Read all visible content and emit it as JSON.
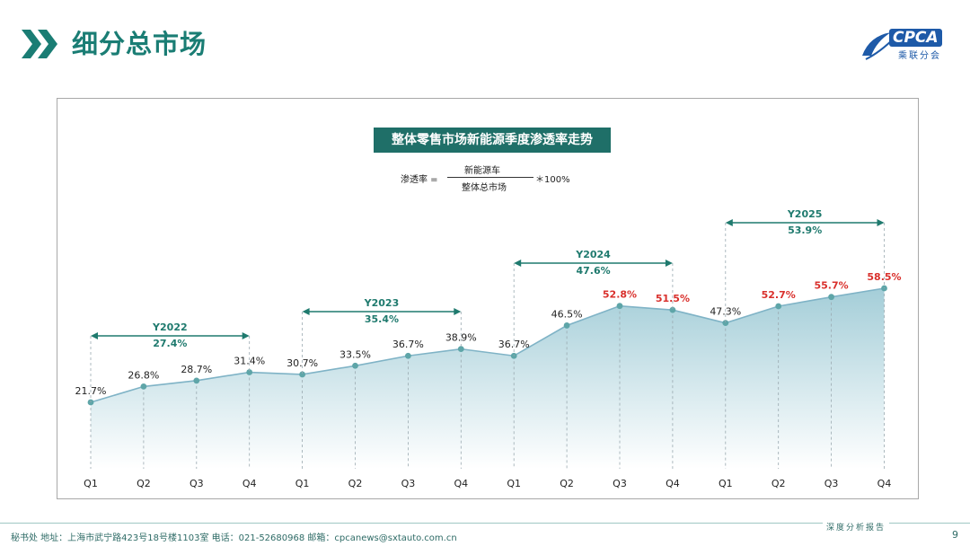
{
  "header": {
    "title": "细分总市场",
    "icon": "double-chevron-right-icon",
    "accent_color": "#1a7d74"
  },
  "logo": {
    "main": "CPCA",
    "sub": "乘联分会"
  },
  "chart_data": {
    "type": "area",
    "title": "整体零售市场新能源季度渗透率走势",
    "formula": {
      "lhs": "渗透率 =",
      "numerator": "新能源车",
      "denominator": "整体总市场",
      "rhs": "＊100%"
    },
    "categories": [
      "Q1",
      "Q2",
      "Q3",
      "Q4",
      "Q1",
      "Q2",
      "Q3",
      "Q4",
      "Q1",
      "Q2",
      "Q3",
      "Q4",
      "Q1",
      "Q2",
      "Q3",
      "Q4"
    ],
    "values": [
      21.7,
      26.8,
      28.7,
      31.4,
      30.7,
      33.5,
      36.7,
      38.9,
      36.7,
      46.5,
      52.8,
      51.5,
      47.3,
      52.7,
      55.7,
      58.5
    ],
    "value_labels": [
      "21.7%",
      "26.8%",
      "28.7%",
      "31.4%",
      "30.7%",
      "33.5%",
      "36.7%",
      "38.9%",
      "36.7%",
      "46.5%",
      "52.8%",
      "51.5%",
      "47.3%",
      "52.7%",
      "55.7%",
      "58.5%"
    ],
    "highlight": [
      false,
      false,
      false,
      false,
      false,
      false,
      false,
      false,
      false,
      false,
      true,
      true,
      false,
      true,
      true,
      true
    ],
    "highlight_color": "#d9302c",
    "line_color": "#7fb3c6",
    "point_color": "#5ea5a8",
    "annotation_color": "#1f7a6e",
    "year_groups": [
      {
        "label": "Y2022",
        "value": "27.4%",
        "start": 0,
        "end": 3
      },
      {
        "label": "Y2023",
        "value": "35.4%",
        "start": 4,
        "end": 7
      },
      {
        "label": "Y2024",
        "value": "47.6%",
        "start": 8,
        "end": 11
      },
      {
        "label": "Y2025",
        "value": "53.9%",
        "start": 12,
        "end": 15
      }
    ]
  },
  "footer": {
    "text": "秘书处   地址：上海市武宁路423号18号楼1103室   电话：021-52680968   邮箱：cpcanews@sxtauto.com.cn",
    "tag": "深度分析报告",
    "page": "9"
  }
}
